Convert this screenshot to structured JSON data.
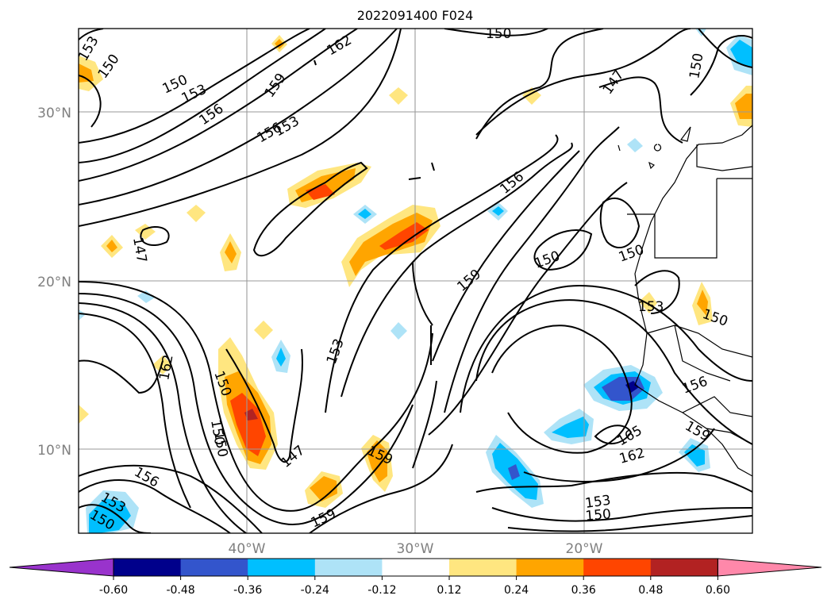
{
  "title": "2022091400 F024",
  "axes": {
    "lat_labels": [
      "30°N",
      "20°N",
      "10°N"
    ],
    "lon_labels": [
      "40°W",
      "30°W",
      "20°W"
    ]
  },
  "contour_labels": [
    "153",
    "150",
    "150",
    "153",
    "156",
    "159",
    "162",
    "156",
    "153",
    "150",
    "147",
    "150",
    "147",
    "156",
    "150",
    "150",
    "159",
    "150",
    "153",
    "150",
    "162",
    "153",
    "150",
    "159",
    "147",
    "150",
    "159",
    "156",
    "153",
    "150",
    "156",
    "159",
    "165",
    "162",
    "153",
    "150"
  ],
  "colorbar": {
    "ticks": [
      "-0.60",
      "-0.48",
      "-0.36",
      "-0.24",
      "-0.12",
      "0.12",
      "0.24",
      "0.36",
      "0.48",
      "0.60"
    ],
    "colors": [
      "#9933cc",
      "#00008b",
      "#3355cc",
      "#00bfff",
      "#aee3f7",
      "#ffffff",
      "#ffe680",
      "#ffa500",
      "#ff4500",
      "#b22222",
      "#ff88aa"
    ]
  }
}
